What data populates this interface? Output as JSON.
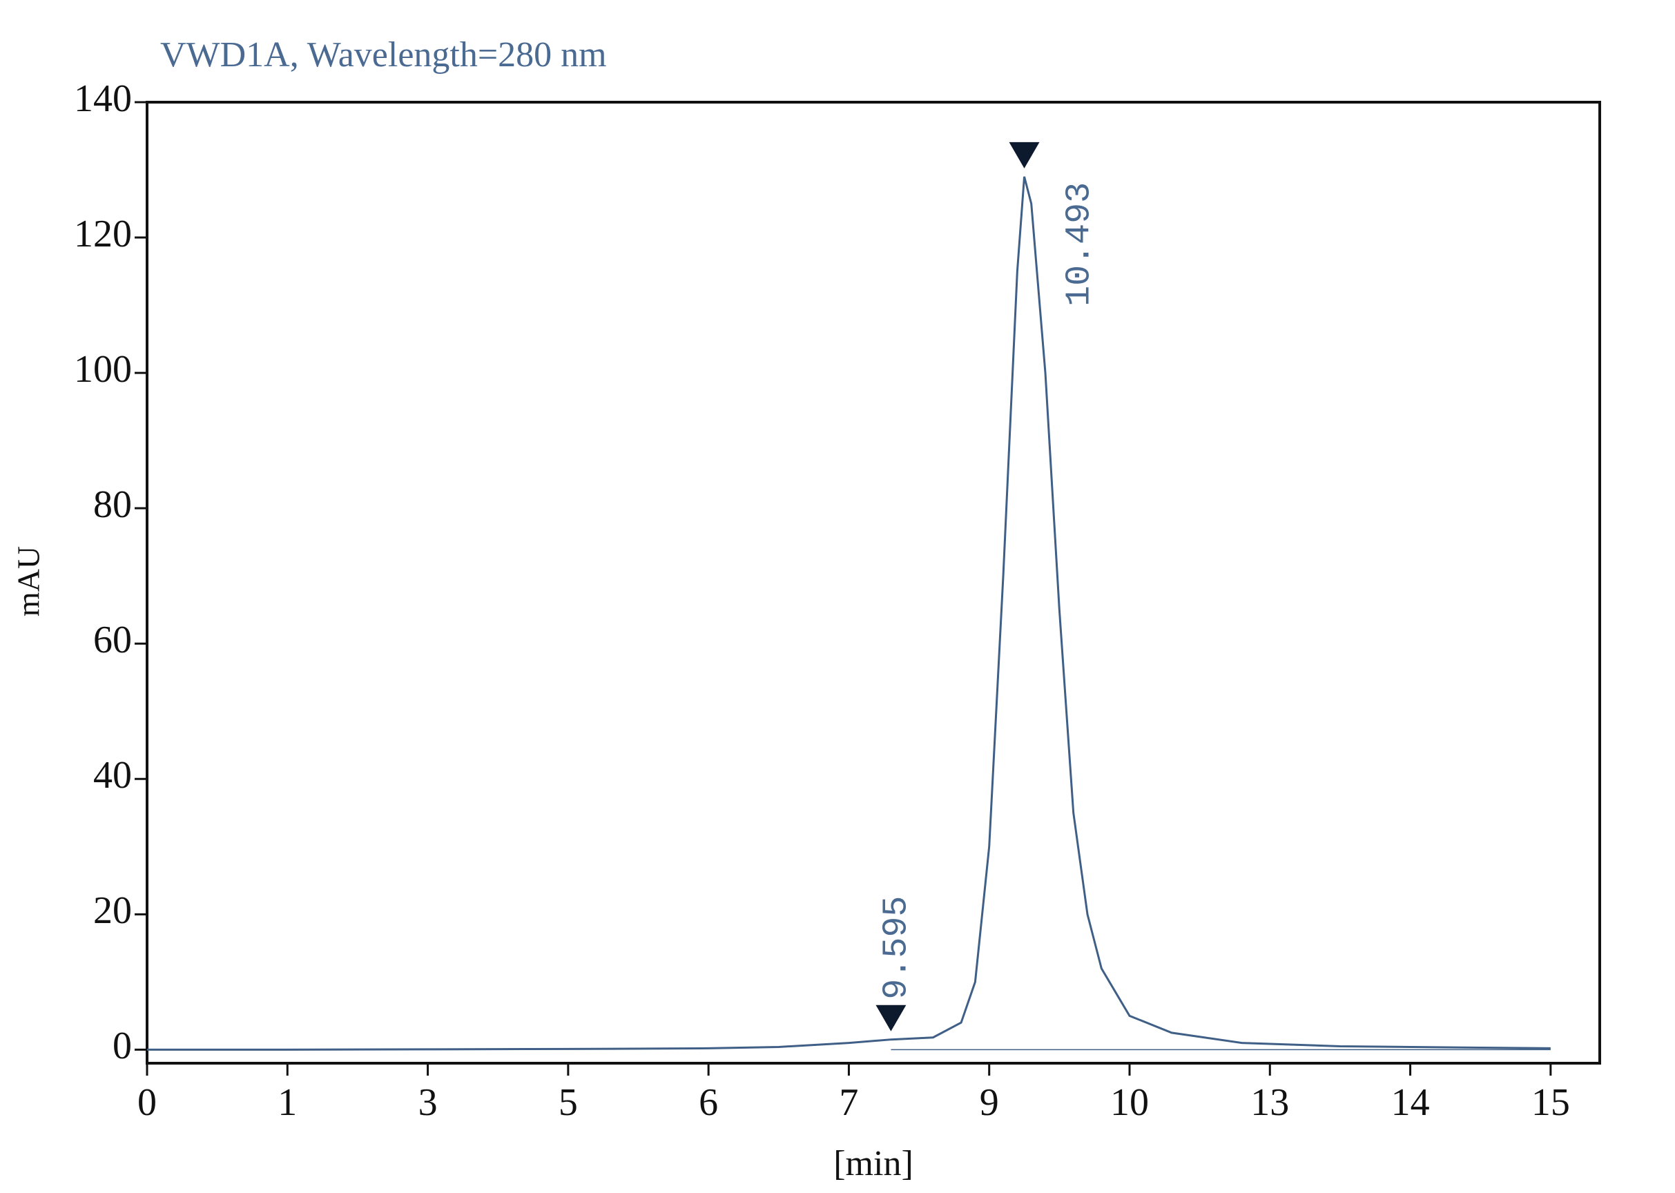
{
  "chart_data": {
    "type": "line",
    "title": "VWD1A, Wavelength=280 nm",
    "xlabel": "[min]",
    "ylabel": "mAU",
    "xlim": [
      0,
      10.35
    ],
    "ylim": [
      -2,
      140
    ],
    "xticks": [
      0,
      1,
      {
        "value": 2,
        "label": "3"
      },
      {
        "value": 3,
        "label": "5"
      },
      {
        "value": 4,
        "label": "6"
      },
      {
        "value": 5,
        "label": "7"
      },
      {
        "value": 6,
        "label": "9"
      },
      {
        "value": 7,
        "label": "10"
      },
      {
        "value": 8,
        "label": "13"
      },
      {
        "value": 9,
        "label": "14"
      },
      {
        "value": 10,
        "label": "15"
      }
    ],
    "yticks": [
      0,
      20,
      40,
      60,
      80,
      100,
      120,
      140
    ],
    "series": [
      {
        "color": "#3f5f86",
        "x": [
          0,
          1,
          2,
          3,
          4,
          4.5,
          5,
          5.3,
          5.6,
          5.8,
          5.9,
          6.0,
          6.1,
          6.2,
          6.25,
          6.3,
          6.4,
          6.5,
          6.6,
          6.7,
          6.8,
          7.0,
          7.3,
          7.8,
          8.5,
          9.5,
          10
        ],
        "values": [
          0,
          0,
          0.05,
          0.1,
          0.2,
          0.4,
          1.0,
          1.5,
          1.8,
          4,
          10,
          30,
          70,
          115,
          129,
          125,
          100,
          65,
          35,
          20,
          12,
          5,
          2.5,
          1,
          0.5,
          0.3,
          0.2
        ]
      }
    ],
    "annotations": [
      {
        "text": "9.595",
        "x": 5.3,
        "y": 1.5
      },
      {
        "text": "10.493",
        "x": 6.25,
        "y": 129
      }
    ]
  }
}
